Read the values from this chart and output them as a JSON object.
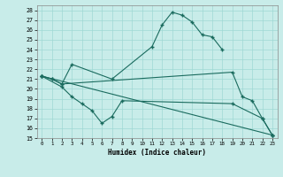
{
  "xlabel": "Humidex (Indice chaleur)",
  "background_color": "#c8ece9",
  "grid_color": "#9fd8d4",
  "line_color": "#1a6b5e",
  "x_ticks": [
    0,
    1,
    2,
    3,
    4,
    5,
    6,
    7,
    8,
    9,
    10,
    11,
    12,
    13,
    14,
    15,
    16,
    17,
    18,
    19,
    20,
    21,
    22,
    23
  ],
  "ylim": [
    15,
    28.5
  ],
  "xlim": [
    -0.5,
    23.5
  ],
  "yticks": [
    15,
    16,
    17,
    18,
    19,
    20,
    21,
    22,
    23,
    24,
    25,
    26,
    27,
    28
  ],
  "lines": [
    {
      "x": [
        0,
        1,
        2,
        3,
        7,
        11,
        12,
        13,
        14,
        15,
        16,
        17,
        18
      ],
      "y": [
        21.3,
        21.0,
        20.5,
        22.5,
        21.0,
        24.3,
        26.5,
        27.8,
        27.5,
        26.8,
        25.5,
        25.3,
        24.0
      ]
    },
    {
      "x": [
        0,
        1,
        2,
        19,
        20,
        21,
        22,
        23
      ],
      "y": [
        21.3,
        21.0,
        20.5,
        21.7,
        19.2,
        18.8,
        17.0,
        15.3
      ]
    },
    {
      "x": [
        0,
        2,
        3,
        4,
        5,
        6,
        7,
        8,
        19,
        22,
        23
      ],
      "y": [
        21.3,
        20.2,
        19.2,
        18.5,
        17.8,
        16.5,
        17.2,
        18.8,
        18.5,
        17.0,
        15.3
      ]
    },
    {
      "x": [
        0,
        23
      ],
      "y": [
        21.3,
        15.3
      ]
    }
  ]
}
